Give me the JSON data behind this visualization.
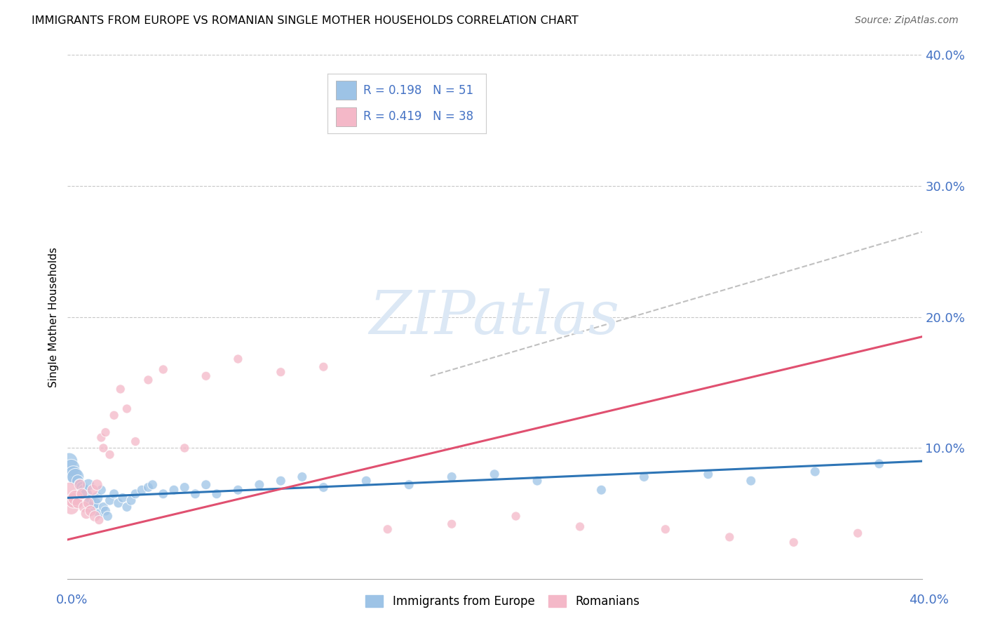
{
  "title": "IMMIGRANTS FROM EUROPE VS ROMANIAN SINGLE MOTHER HOUSEHOLDS CORRELATION CHART",
  "source": "Source: ZipAtlas.com",
  "ylabel": "Single Mother Households",
  "ytick_vals": [
    0.0,
    0.1,
    0.2,
    0.3,
    0.4
  ],
  "ytick_labels": [
    "",
    "10.0%",
    "20.0%",
    "30.0%",
    "40.0%"
  ],
  "xlim": [
    0.0,
    0.4
  ],
  "ylim": [
    0.0,
    0.4
  ],
  "legend_text_color": "#4472c4",
  "blue_color": "#9dc3e6",
  "pink_color": "#f4b8c8",
  "blue_line_color": "#2e75b6",
  "pink_line_color": "#e05070",
  "dashed_line_color": "#c0c0c0",
  "watermark_color": "#dce8f5",
  "blue_scatter_x": [
    0.001,
    0.002,
    0.003,
    0.004,
    0.005,
    0.006,
    0.007,
    0.008,
    0.009,
    0.01,
    0.011,
    0.012,
    0.013,
    0.014,
    0.015,
    0.016,
    0.017,
    0.018,
    0.019,
    0.02,
    0.022,
    0.024,
    0.026,
    0.028,
    0.03,
    0.032,
    0.035,
    0.038,
    0.04,
    0.045,
    0.05,
    0.055,
    0.06,
    0.065,
    0.07,
    0.08,
    0.09,
    0.1,
    0.11,
    0.12,
    0.14,
    0.16,
    0.18,
    0.2,
    0.22,
    0.25,
    0.27,
    0.3,
    0.32,
    0.35,
    0.38
  ],
  "blue_scatter_y": [
    0.09,
    0.085,
    0.08,
    0.078,
    0.075,
    0.072,
    0.07,
    0.068,
    0.065,
    0.072,
    0.06,
    0.055,
    0.058,
    0.062,
    0.05,
    0.068,
    0.055,
    0.052,
    0.048,
    0.06,
    0.065,
    0.058,
    0.062,
    0.055,
    0.06,
    0.065,
    0.068,
    0.07,
    0.072,
    0.065,
    0.068,
    0.07,
    0.065,
    0.072,
    0.065,
    0.068,
    0.072,
    0.075,
    0.078,
    0.07,
    0.075,
    0.072,
    0.078,
    0.08,
    0.075,
    0.068,
    0.078,
    0.08,
    0.075,
    0.082,
    0.088
  ],
  "pink_scatter_x": [
    0.001,
    0.002,
    0.003,
    0.004,
    0.005,
    0.006,
    0.007,
    0.008,
    0.009,
    0.01,
    0.011,
    0.012,
    0.013,
    0.014,
    0.015,
    0.016,
    0.017,
    0.018,
    0.02,
    0.022,
    0.025,
    0.028,
    0.032,
    0.038,
    0.045,
    0.055,
    0.065,
    0.08,
    0.1,
    0.12,
    0.15,
    0.18,
    0.21,
    0.24,
    0.28,
    0.31,
    0.34,
    0.37
  ],
  "pink_scatter_y": [
    0.068,
    0.055,
    0.06,
    0.062,
    0.058,
    0.072,
    0.065,
    0.055,
    0.05,
    0.058,
    0.052,
    0.068,
    0.048,
    0.072,
    0.045,
    0.108,
    0.1,
    0.112,
    0.095,
    0.125,
    0.145,
    0.13,
    0.105,
    0.152,
    0.16,
    0.1,
    0.155,
    0.168,
    0.158,
    0.162,
    0.038,
    0.042,
    0.048,
    0.04,
    0.038,
    0.032,
    0.028,
    0.035
  ],
  "blue_trendline_x": [
    0.0,
    0.4
  ],
  "blue_trendline_y": [
    0.062,
    0.09
  ],
  "pink_trendline_x": [
    0.0,
    0.4
  ],
  "pink_trendline_y": [
    0.03,
    0.185
  ],
  "dashed_trendline_x": [
    0.17,
    0.4
  ],
  "dashed_trendline_y": [
    0.155,
    0.265
  ]
}
